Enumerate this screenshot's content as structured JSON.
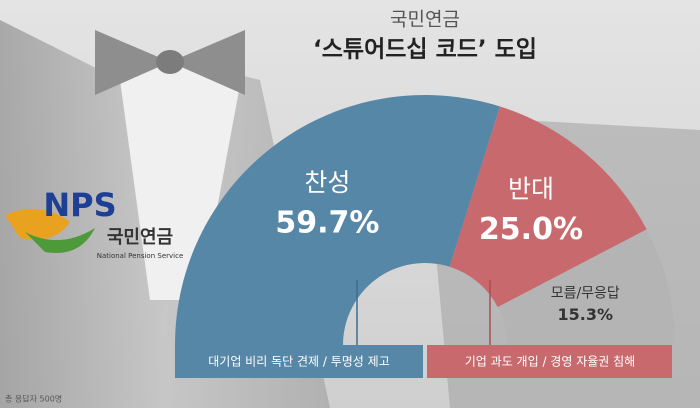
{
  "chart_data": {
    "type": "half-donut",
    "title": "국민연금",
    "subtitle": "‘스튜어드십 코드’ 도입",
    "categories": [
      "찬성",
      "반대",
      "모름/무응답"
    ],
    "values": [
      59.7,
      25.0,
      15.3
    ],
    "value_labels": [
      "59.7%",
      "25.0%",
      "15.3%"
    ],
    "colors": [
      "#5787a6",
      "#c86a6d",
      "#b4b4b4"
    ],
    "notes": [
      "대기업 비리 독단 견제 / 투명성 제고",
      "기업 과도 개입 / 경영 자율권 침해"
    ],
    "footnote": "총 응답자 500명"
  },
  "logo": {
    "mark": "NPS",
    "name": "국민연금",
    "english": "National Pension Service"
  }
}
